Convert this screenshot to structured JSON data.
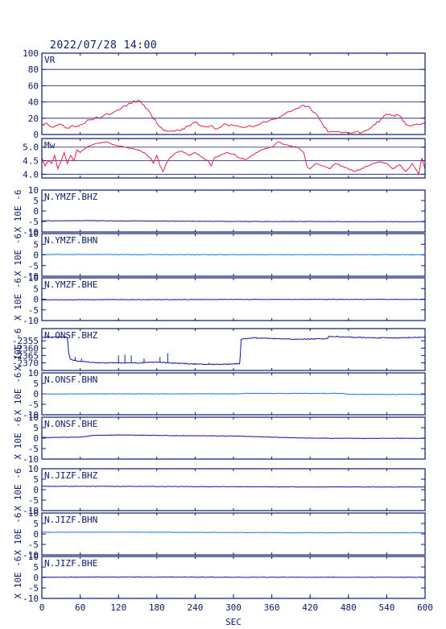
{
  "header": {
    "datetime": "2022/07/28 14:00"
  },
  "colors": {
    "frame": "#0b1a6b",
    "red": "#e0204a",
    "dark_blue": "#1414a8",
    "light_blue": "#1c78e0"
  },
  "chart_data": {
    "type": "line",
    "x_axis": {
      "label": "SEC",
      "range": [
        0,
        600
      ],
      "ticks": [
        0,
        60,
        120,
        180,
        240,
        300,
        360,
        420,
        480,
        540,
        600
      ]
    },
    "panels": [
      {
        "id": "vr",
        "label": "VR",
        "color": "red",
        "range": [
          0,
          100
        ],
        "ticks": [
          0,
          20,
          40,
          60,
          80,
          100
        ],
        "grid": true,
        "points": [
          [
            0,
            13
          ],
          [
            10,
            12
          ],
          [
            20,
            10
          ],
          [
            30,
            12
          ],
          [
            40,
            8
          ],
          [
            50,
            10
          ],
          [
            60,
            12
          ],
          [
            75,
            18
          ],
          [
            95,
            22
          ],
          [
            110,
            26
          ],
          [
            125,
            33
          ],
          [
            140,
            38
          ],
          [
            150,
            42
          ],
          [
            160,
            36
          ],
          [
            170,
            26
          ],
          [
            180,
            14
          ],
          [
            190,
            5
          ],
          [
            200,
            4
          ],
          [
            215,
            5
          ],
          [
            225,
            9
          ],
          [
            240,
            15
          ],
          [
            250,
            10
          ],
          [
            265,
            11
          ],
          [
            275,
            7
          ],
          [
            285,
            13
          ],
          [
            300,
            11
          ],
          [
            320,
            9
          ],
          [
            340,
            12
          ],
          [
            350,
            15
          ],
          [
            365,
            19
          ],
          [
            380,
            25
          ],
          [
            395,
            31
          ],
          [
            410,
            36
          ],
          [
            420,
            33
          ],
          [
            430,
            25
          ],
          [
            440,
            12
          ],
          [
            450,
            3
          ],
          [
            470,
            2
          ],
          [
            490,
            3
          ],
          [
            500,
            2
          ],
          [
            520,
            12
          ],
          [
            530,
            18
          ],
          [
            540,
            25
          ],
          [
            550,
            24
          ],
          [
            560,
            23
          ],
          [
            570,
            12
          ],
          [
            580,
            11
          ],
          [
            590,
            12
          ],
          [
            600,
            13
          ]
        ]
      },
      {
        "id": "mw",
        "label": "Mw",
        "color": "red",
        "range": [
          3.95,
          5.2
        ],
        "ticks": [
          4.0,
          4.5,
          5.0
        ],
        "grid": true,
        "points": [
          [
            0,
            4.6
          ],
          [
            5,
            4.3
          ],
          [
            10,
            4.5
          ],
          [
            15,
            4.4
          ],
          [
            20,
            4.7
          ],
          [
            25,
            4.2
          ],
          [
            30,
            4.5
          ],
          [
            35,
            4.8
          ],
          [
            40,
            4.4
          ],
          [
            45,
            4.7
          ],
          [
            50,
            4.5
          ],
          [
            55,
            4.9
          ],
          [
            60,
            4.8
          ],
          [
            70,
            5.0
          ],
          [
            80,
            5.1
          ],
          [
            90,
            5.15
          ],
          [
            100,
            5.2
          ],
          [
            110,
            5.1
          ],
          [
            120,
            5.05
          ],
          [
            130,
            5.0
          ],
          [
            140,
            4.95
          ],
          [
            150,
            4.9
          ],
          [
            160,
            4.8
          ],
          [
            170,
            4.6
          ],
          [
            175,
            4.4
          ],
          [
            180,
            4.7
          ],
          [
            185,
            4.3
          ],
          [
            190,
            4.1
          ],
          [
            195,
            4.4
          ],
          [
            200,
            4.6
          ],
          [
            210,
            4.8
          ],
          [
            220,
            4.85
          ],
          [
            230,
            4.7
          ],
          [
            240,
            4.8
          ],
          [
            250,
            4.65
          ],
          [
            260,
            4.5
          ],
          [
            265,
            4.3
          ],
          [
            270,
            4.6
          ],
          [
            280,
            4.7
          ],
          [
            290,
            4.8
          ],
          [
            300,
            4.75
          ],
          [
            310,
            4.6
          ],
          [
            320,
            4.55
          ],
          [
            330,
            4.7
          ],
          [
            340,
            4.85
          ],
          [
            350,
            4.95
          ],
          [
            360,
            5.0
          ],
          [
            370,
            5.2
          ],
          [
            380,
            5.1
          ],
          [
            390,
            5.05
          ],
          [
            400,
            5.0
          ],
          [
            410,
            4.8
          ],
          [
            415,
            4.3
          ],
          [
            420,
            4.2
          ],
          [
            430,
            4.4
          ],
          [
            440,
            4.3
          ],
          [
            450,
            4.2
          ],
          [
            460,
            4.4
          ],
          [
            470,
            4.3
          ],
          [
            480,
            4.2
          ],
          [
            490,
            4.1
          ],
          [
            500,
            4.2
          ],
          [
            510,
            4.3
          ],
          [
            520,
            4.4
          ],
          [
            530,
            4.45
          ],
          [
            540,
            4.4
          ],
          [
            550,
            4.2
          ],
          [
            560,
            4.35
          ],
          [
            570,
            4.1
          ],
          [
            580,
            4.4
          ],
          [
            590,
            4.0
          ],
          [
            595,
            4.6
          ],
          [
            600,
            4.2
          ]
        ]
      },
      {
        "id": "ymzf-bhz",
        "label": "N.YMZF.BHZ",
        "color": "dark_blue",
        "range": [
          -10,
          10
        ],
        "ticks": [
          -10,
          -5,
          0,
          5,
          10
        ],
        "ylabel": "X 10E -6",
        "points": [
          [
            0,
            -4.7
          ],
          [
            60,
            -4.6
          ],
          [
            120,
            -4.7
          ],
          [
            180,
            -4.8
          ],
          [
            240,
            -4.9
          ],
          [
            300,
            -5.0
          ],
          [
            360,
            -5.0
          ],
          [
            420,
            -5.0
          ],
          [
            480,
            -5.1
          ],
          [
            540,
            -5.1
          ],
          [
            600,
            -5.1
          ]
        ]
      },
      {
        "id": "ymzf-bhn",
        "label": "N.YMZF.BHN",
        "color": "light_blue",
        "range": [
          -10,
          10
        ],
        "ticks": [
          -10,
          -5,
          0,
          5,
          10
        ],
        "ylabel": "X 10E -6",
        "points": [
          [
            0,
            0.2
          ],
          [
            100,
            0.2
          ],
          [
            200,
            0.1
          ],
          [
            300,
            0.1
          ],
          [
            400,
            0.1
          ],
          [
            500,
            0.1
          ],
          [
            600,
            0.1
          ]
        ]
      },
      {
        "id": "ymzf-bhe",
        "label": "N.YMZF.BHE",
        "color": "dark_blue",
        "range": [
          -10,
          10
        ],
        "ticks": [
          -10,
          -5,
          0,
          5,
          10
        ],
        "ylabel": "X 10E -6",
        "points": [
          [
            0,
            -0.3
          ],
          [
            100,
            -0.2
          ],
          [
            200,
            -0.2
          ],
          [
            300,
            -0.1
          ],
          [
            400,
            -0.1
          ],
          [
            500,
            -0.1
          ],
          [
            600,
            -0.1
          ]
        ]
      },
      {
        "id": "onsf-bhz",
        "label": "N.ONSF.BHZ",
        "color": "dark_blue",
        "range": [
          -2373,
          -2350
        ],
        "ticks": [
          -2370,
          -2365,
          -2360,
          -2355
        ],
        "ylabel": "X 10E -6",
        "points": [
          [
            0,
            -2352.5
          ],
          [
            40,
            -2352.5
          ],
          [
            42,
            -2363
          ],
          [
            45,
            -2368
          ],
          [
            60,
            -2369
          ],
          [
            90,
            -2370
          ],
          [
            120,
            -2370
          ],
          [
            150,
            -2370
          ],
          [
            180,
            -2369.5
          ],
          [
            200,
            -2370
          ],
          [
            225,
            -2370.5
          ],
          [
            250,
            -2371
          ],
          [
            280,
            -2371
          ],
          [
            310,
            -2370.5
          ],
          [
            312,
            -2354
          ],
          [
            330,
            -2353
          ],
          [
            360,
            -2353.5
          ],
          [
            400,
            -2354
          ],
          [
            447,
            -2353.5
          ],
          [
            450,
            -2352
          ],
          [
            480,
            -2352.5
          ],
          [
            520,
            -2353
          ],
          [
            560,
            -2353
          ],
          [
            600,
            -2352.5
          ]
        ],
        "spikes": [
          [
            52,
            -2366
          ],
          [
            62,
            -2367
          ],
          [
            120,
            -2365
          ],
          [
            130,
            -2364.5
          ],
          [
            140,
            -2365
          ],
          [
            160,
            -2367
          ],
          [
            185,
            -2366
          ],
          [
            197,
            -2363.5
          ],
          [
            262,
            -2370
          ]
        ]
      },
      {
        "id": "onsf-bhn",
        "label": "N.ONSF.BHN",
        "color": "light_blue",
        "range": [
          -10,
          10
        ],
        "ticks": [
          -10,
          -5,
          0,
          5,
          10
        ],
        "ylabel": "X 10E -6",
        "points": [
          [
            0,
            -0.1
          ],
          [
            100,
            0
          ],
          [
            200,
            0
          ],
          [
            300,
            0
          ],
          [
            320,
            0.2
          ],
          [
            400,
            0.2
          ],
          [
            470,
            0.2
          ],
          [
            480,
            -0.2
          ],
          [
            540,
            -0.3
          ],
          [
            600,
            -0.3
          ]
        ]
      },
      {
        "id": "onsf-bhe",
        "label": "N.ONSF.BHE",
        "color": "dark_blue",
        "range": [
          -10,
          10
        ],
        "ticks": [
          -10,
          -5,
          0,
          5,
          10
        ],
        "ylabel": "X 10E -6",
        "points": [
          [
            0,
            0.3
          ],
          [
            60,
            0.5
          ],
          [
            80,
            1.3
          ],
          [
            120,
            1.5
          ],
          [
            160,
            1.4
          ],
          [
            200,
            1.2
          ],
          [
            300,
            1.0
          ],
          [
            360,
            0.5
          ],
          [
            400,
            0.1
          ],
          [
            460,
            -0.1
          ],
          [
            540,
            -0.1
          ],
          [
            600,
            -0.1
          ]
        ]
      },
      {
        "id": "jizf-bhz",
        "label": "N.JIZF.BHZ",
        "color": "dark_blue",
        "range": [
          -10,
          10
        ],
        "ticks": [
          -10,
          -5,
          0,
          5,
          10
        ],
        "ylabel": "X 10E -6",
        "points": [
          [
            0,
            1.6
          ],
          [
            100,
            1.6
          ],
          [
            200,
            1.5
          ],
          [
            300,
            1.4
          ],
          [
            400,
            1.3
          ],
          [
            500,
            1.3
          ],
          [
            600,
            1.3
          ]
        ]
      },
      {
        "id": "jizf-bhn",
        "label": "N.JIZF.BHN",
        "color": "light_blue",
        "range": [
          -10,
          10
        ],
        "ticks": [
          -10,
          -5,
          0,
          5,
          10
        ],
        "ylabel": "X 10E -6",
        "points": [
          [
            0,
            0.8
          ],
          [
            100,
            0.9
          ],
          [
            200,
            0.8
          ],
          [
            300,
            0.7
          ],
          [
            400,
            0.6
          ],
          [
            500,
            0.6
          ],
          [
            600,
            0.6
          ]
        ]
      },
      {
        "id": "jizf-bhe",
        "label": "N.JIZF.BHE",
        "color": "dark_blue",
        "range": [
          -10,
          10
        ],
        "ticks": [
          -10,
          -5,
          0,
          5,
          10
        ],
        "ylabel": "X 10E -6",
        "points": [
          [
            0,
            0.1
          ],
          [
            100,
            0.2
          ],
          [
            200,
            0.2
          ],
          [
            300,
            0.1
          ],
          [
            400,
            0.1
          ],
          [
            500,
            0.1
          ],
          [
            600,
            0.1
          ]
        ]
      }
    ]
  }
}
